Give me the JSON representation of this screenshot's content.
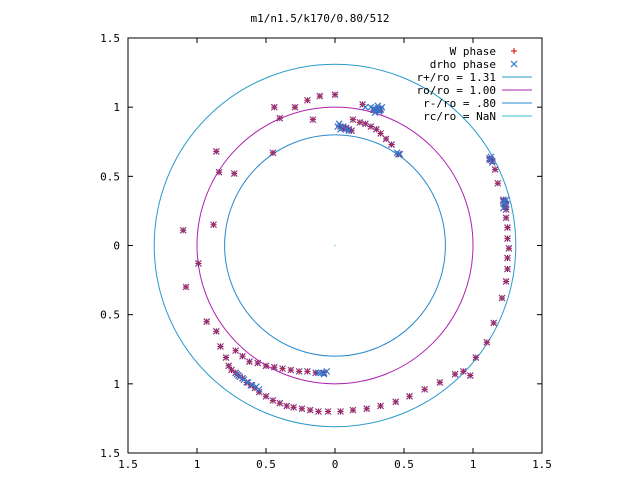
{
  "chart_data": {
    "type": "scatter",
    "title": "m1/n1.5/k170/0.80/512",
    "xlim": [
      -1.5,
      1.5
    ],
    "ylim": [
      -1.5,
      1.5
    ],
    "x_ticks": [
      -1.5,
      -1,
      -0.5,
      0,
      0.5,
      1,
      1.5
    ],
    "x_tick_labels": [
      "1.5",
      "1",
      "0.5",
      "0",
      "0.5",
      "1",
      "1.5"
    ],
    "y_ticks": [
      1.5,
      1,
      0.5,
      0,
      -0.5,
      -1,
      -1.5
    ],
    "y_tick_labels": [
      "1.5",
      "1",
      "0.5",
      "0",
      "0.5",
      "1",
      "1.5"
    ],
    "grid": false,
    "legend_position": "top-right",
    "series": [
      {
        "name": "W phase",
        "marker": "plus",
        "color": "#cc0000",
        "points": [
          [
            0.2,
            1.02
          ],
          [
            0.31,
            0.99
          ],
          [
            0.33,
            0.99
          ],
          [
            0.32,
            0.98
          ],
          [
            0.3,
            0.98
          ],
          [
            0.28,
            0.98
          ],
          [
            0.13,
            0.91
          ],
          [
            0.18,
            0.89
          ],
          [
            0.22,
            0.88
          ],
          [
            0.26,
            0.86
          ],
          [
            0.3,
            0.84
          ],
          [
            0.33,
            0.81
          ],
          [
            0.37,
            0.77
          ],
          [
            0.41,
            0.73
          ],
          [
            0.46,
            0.66
          ],
          [
            0.04,
            0.86
          ],
          [
            0.06,
            0.85
          ],
          [
            0.08,
            0.85
          ],
          [
            0.1,
            0.84
          ],
          [
            0.12,
            0.83
          ],
          [
            0.0,
            1.09
          ],
          [
            -0.11,
            1.08
          ],
          [
            -0.16,
            0.91
          ],
          [
            -0.2,
            1.05
          ],
          [
            -0.29,
            1.0
          ],
          [
            -0.4,
            0.92
          ],
          [
            -0.44,
            1.0
          ],
          [
            -0.45,
            0.67
          ],
          [
            -0.86,
            0.68
          ],
          [
            -0.84,
            0.53
          ],
          [
            -0.73,
            0.52
          ],
          [
            1.12,
            0.63
          ],
          [
            1.13,
            0.62
          ],
          [
            1.14,
            0.61
          ],
          [
            1.16,
            0.55
          ],
          [
            1.18,
            0.45
          ],
          [
            1.22,
            0.33
          ],
          [
            1.23,
            0.31
          ],
          [
            1.24,
            0.3
          ],
          [
            1.23,
            0.28
          ],
          [
            1.24,
            0.26
          ],
          [
            1.24,
            0.2
          ],
          [
            1.25,
            0.13
          ],
          [
            1.25,
            0.05
          ],
          [
            1.26,
            -0.02
          ],
          [
            1.25,
            -0.09
          ],
          [
            1.25,
            -0.17
          ],
          [
            1.24,
            -0.26
          ],
          [
            1.21,
            -0.38
          ],
          [
            1.15,
            -0.56
          ],
          [
            1.1,
            -0.7
          ],
          [
            1.02,
            -0.81
          ],
          [
            0.98,
            -0.94
          ],
          [
            -1.1,
            0.11
          ],
          [
            -0.99,
            -0.13
          ],
          [
            -1.08,
            -0.3
          ],
          [
            -0.93,
            -0.55
          ],
          [
            -0.86,
            -0.62
          ],
          [
            -0.83,
            -0.73
          ],
          [
            -0.79,
            -0.81
          ],
          [
            -0.72,
            -0.76
          ],
          [
            -0.67,
            -0.8
          ],
          [
            -0.77,
            -0.87
          ],
          [
            -0.75,
            -0.9
          ],
          [
            -0.72,
            -0.92
          ],
          [
            -0.7,
            -0.94
          ],
          [
            -0.67,
            -0.96
          ],
          [
            -0.64,
            -0.99
          ],
          [
            -0.61,
            -1.01
          ],
          [
            -0.58,
            -1.03
          ],
          [
            -0.62,
            -0.84
          ],
          [
            -0.56,
            -0.85
          ],
          [
            -0.5,
            -0.87
          ],
          [
            -0.44,
            -0.88
          ],
          [
            -0.38,
            -0.89
          ],
          [
            -0.32,
            -0.9
          ],
          [
            -0.26,
            -0.91
          ],
          [
            -0.2,
            -0.91
          ],
          [
            -0.14,
            -0.92
          ],
          [
            -0.08,
            -0.92
          ],
          [
            -0.55,
            -1.06
          ],
          [
            -0.5,
            -1.09
          ],
          [
            -0.45,
            -1.12
          ],
          [
            -0.4,
            -1.14
          ],
          [
            -0.35,
            -1.16
          ],
          [
            -0.3,
            -1.17
          ],
          [
            -0.24,
            -1.18
          ],
          [
            -0.18,
            -1.19
          ],
          [
            -0.12,
            -1.2
          ],
          [
            -0.05,
            -1.2
          ],
          [
            0.04,
            -1.2
          ],
          [
            0.13,
            -1.19
          ],
          [
            0.23,
            -1.18
          ],
          [
            0.33,
            -1.16
          ],
          [
            0.44,
            -1.13
          ],
          [
            0.54,
            -1.09
          ],
          [
            0.65,
            -1.04
          ],
          [
            0.76,
            -0.99
          ],
          [
            0.87,
            -0.93
          ],
          [
            0.93,
            -0.91
          ],
          [
            -0.88,
            0.15
          ]
        ]
      },
      {
        "name": "drho phase",
        "marker": "cross",
        "color": "#3377cc",
        "points": [
          [
            0.22,
            1.0
          ],
          [
            0.26,
            1.0
          ],
          [
            0.28,
            0.99
          ],
          [
            0.3,
            0.98
          ],
          [
            0.32,
            0.97
          ],
          [
            0.33,
            0.98
          ],
          [
            0.34,
            1.0
          ],
          [
            0.31,
            1.01
          ],
          [
            0.29,
            0.96
          ],
          [
            0.02,
            0.86
          ],
          [
            0.04,
            0.84
          ],
          [
            0.06,
            0.86
          ],
          [
            0.08,
            0.84
          ],
          [
            0.1,
            0.83
          ],
          [
            0.03,
            0.88
          ],
          [
            0.45,
            0.67
          ],
          [
            0.47,
            0.66
          ],
          [
            1.12,
            0.62
          ],
          [
            1.13,
            0.64
          ],
          [
            1.14,
            0.6
          ],
          [
            1.22,
            0.32
          ],
          [
            1.23,
            0.3
          ],
          [
            1.24,
            0.29
          ],
          [
            1.22,
            0.27
          ],
          [
            1.24,
            0.33
          ],
          [
            -0.1,
            -0.92
          ],
          [
            -0.08,
            -0.93
          ],
          [
            -0.06,
            -0.91
          ],
          [
            -0.12,
            -0.92
          ],
          [
            -0.66,
            -0.97
          ],
          [
            -0.63,
            -0.99
          ],
          [
            -0.6,
            -1.01
          ],
          [
            -0.57,
            -1.02
          ],
          [
            -0.55,
            -1.04
          ],
          [
            -0.69,
            -0.95
          ],
          [
            -0.71,
            -0.93
          ]
        ]
      }
    ],
    "circles": [
      {
        "label": "r+/ro = 1.31",
        "radius": 1.31,
        "color": "#2a9acc"
      },
      {
        "label": "ro/ro = 1.00",
        "radius": 1.0,
        "color": "#b020b0"
      },
      {
        "label": "r-/ro = .80",
        "radius": 0.8,
        "color": "#2a8acc"
      },
      {
        "label": "rc/ro = NaN",
        "radius": null,
        "color": "#30c0d0"
      }
    ]
  }
}
